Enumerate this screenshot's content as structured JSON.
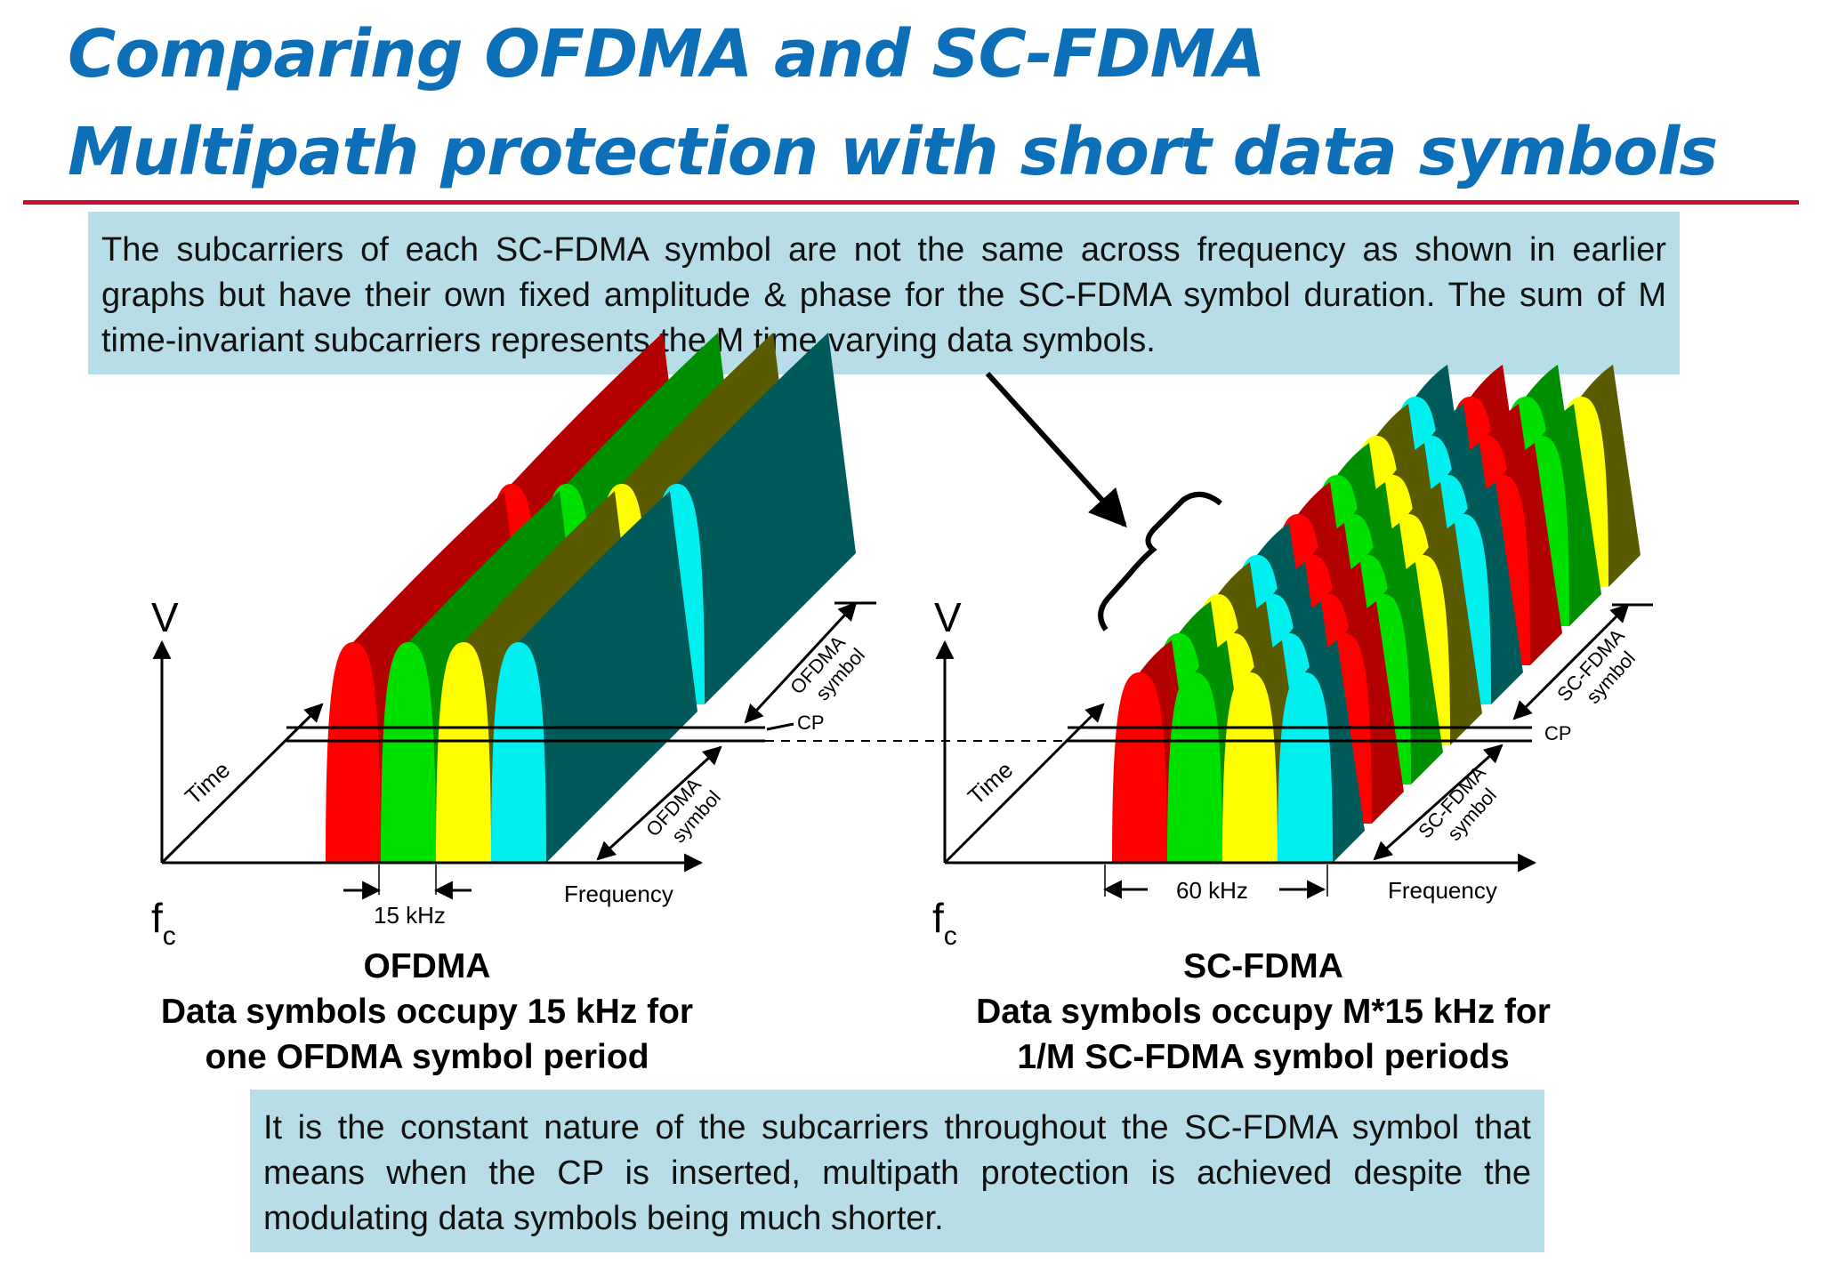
{
  "title": {
    "line1": "Comparing OFDMA and SC-FDMA",
    "line2": "Multipath protection with short data symbols"
  },
  "notes": {
    "top": "The subcarriers of each SC-FDMA symbol are not the same across frequency as shown in earlier graphs but have their own fixed amplitude & phase for the SC-FDMA symbol duration. The sum of M time-invariant subcarriers represents the M time-varying data symbols.",
    "bottom": "It is the constant nature of the subcarriers throughout the SC-FDMA symbol that means when the CP is inserted, multipath protection is achieved despite the modulating data symbols being much shorter."
  },
  "ofdma": {
    "axis_v": "V",
    "axis_time": "Time",
    "axis_frequency": "Frequency",
    "fc_main": "f",
    "fc_sub": "c",
    "spacing": "15 kHz",
    "symbol_label_line1": "OFDMA",
    "symbol_label_line2": "symbol",
    "cp_label": "CP",
    "caption": [
      "OFDMA",
      "Data symbols occupy 15 kHz for",
      "one OFDMA symbol period"
    ]
  },
  "scfdma": {
    "axis_v": "V",
    "axis_time": "Time",
    "axis_frequency": "Frequency",
    "fc_main": "f",
    "fc_sub": "c",
    "spacing": "60 kHz",
    "symbol_label_line1": "SC-FDMA",
    "symbol_label_line2": "symbol",
    "cp_label": "CP",
    "caption": [
      "SC-FDMA",
      "Data symbols occupy M*15 kHz for",
      "1/M SC-FDMA symbol periods"
    ]
  },
  "colors": {
    "title": "#0c6fb8",
    "rule": "#c8102e",
    "note_bg": "#b7dde8",
    "subcarriers": [
      "#ff0000",
      "#00e000",
      "#ffff00",
      "#00f0f0"
    ],
    "subcarrier_sides": [
      "#b30000",
      "#008f00",
      "#5a5a00",
      "#005a5a"
    ]
  }
}
